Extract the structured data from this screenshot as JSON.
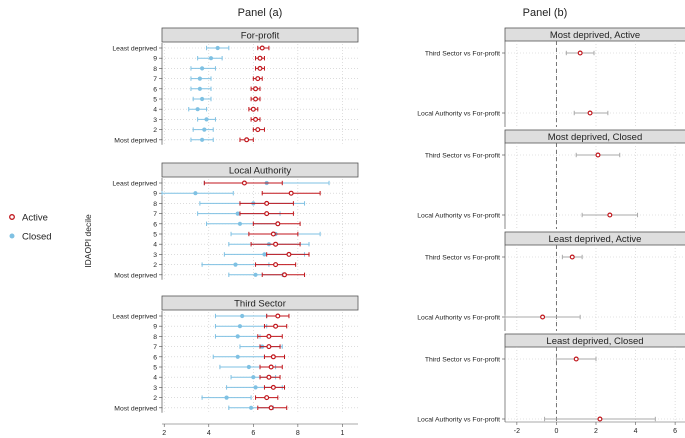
{
  "figure": {
    "ylabel": "IDAOPI decile",
    "legend": [
      {
        "name": "Active",
        "color": "#c0161c",
        "marker": "hollow-circle"
      },
      {
        "name": "Closed",
        "color": "#7fc1e3",
        "marker": "filled-circle"
      }
    ],
    "legend_position": "left"
  },
  "chart_data": [
    {
      "type": "scatter",
      "panel": "Panel (a)",
      "title": "Panel (a)",
      "xticks": [
        2,
        4,
        6,
        8,
        1
      ],
      "xlim": [
        1.9,
        10.7
      ],
      "categories": [
        "Least deprived",
        "9",
        "8",
        "7",
        "6",
        "5",
        "4",
        "3",
        "2",
        "Most deprived"
      ],
      "facets": [
        {
          "title": "For-profit",
          "series": [
            {
              "name": "Active",
              "values": [
                6.4,
                6.3,
                6.3,
                6.2,
                6.1,
                6.1,
                6.0,
                6.1,
                6.2,
                5.7
              ],
              "lower": [
                6.2,
                6.1,
                6.1,
                6.0,
                5.9,
                5.9,
                5.8,
                5.9,
                6.0,
                5.4
              ],
              "upper": [
                6.7,
                6.5,
                6.5,
                6.4,
                6.3,
                6.3,
                6.2,
                6.3,
                6.5,
                6.0
              ]
            },
            {
              "name": "Closed",
              "values": [
                4.4,
                4.1,
                3.7,
                3.6,
                3.6,
                3.7,
                3.5,
                3.9,
                3.8,
                3.7
              ],
              "lower": [
                3.9,
                3.5,
                3.2,
                3.2,
                3.2,
                3.3,
                3.1,
                3.5,
                3.3,
                3.2
              ],
              "upper": [
                4.9,
                4.6,
                4.3,
                4.1,
                4.1,
                4.1,
                3.9,
                4.3,
                4.2,
                4.2
              ]
            }
          ]
        },
        {
          "title": "Local Authority",
          "series": [
            {
              "name": "Active",
              "values": [
                5.6,
                7.7,
                6.6,
                6.6,
                7.1,
                6.9,
                7.0,
                7.6,
                7.0,
                7.4
              ],
              "lower": [
                3.8,
                6.4,
                5.4,
                5.4,
                6.0,
                5.8,
                5.9,
                6.6,
                6.1,
                6.4
              ],
              "upper": [
                7.3,
                9.0,
                7.8,
                7.8,
                8.1,
                8.0,
                8.1,
                8.5,
                7.9,
                8.3
              ]
            },
            {
              "name": "Closed",
              "values": [
                6.6,
                3.4,
                6.0,
                5.3,
                5.4,
                7.0,
                6.7,
                6.5,
                5.2,
                6.1
              ],
              "lower": [
                3.8,
                1.9,
                3.6,
                3.5,
                3.9,
                5.0,
                4.9,
                4.7,
                3.7,
                4.9
              ],
              "upper": [
                9.4,
                5.1,
                8.3,
                7.2,
                7.1,
                9.0,
                8.5,
                8.3,
                6.7,
                7.3
              ]
            }
          ]
        },
        {
          "title": "Third Sector",
          "series": [
            {
              "name": "Active",
              "values": [
                7.1,
                7.0,
                6.7,
                6.7,
                6.9,
                6.8,
                6.7,
                6.9,
                6.6,
                6.8
              ],
              "lower": [
                6.6,
                6.5,
                6.2,
                6.3,
                6.5,
                6.3,
                6.3,
                6.5,
                6.1,
                6.2
              ],
              "upper": [
                7.6,
                7.5,
                7.3,
                7.2,
                7.4,
                7.3,
                7.2,
                7.4,
                7.1,
                7.5
              ]
            },
            {
              "name": "Closed",
              "values": [
                5.5,
                5.4,
                5.3,
                6.4,
                5.3,
                5.8,
                6.0,
                6.1,
                4.8,
                5.9
              ],
              "lower": [
                4.3,
                4.3,
                4.3,
                5.4,
                4.2,
                4.5,
                5.0,
                4.8,
                3.7,
                4.9
              ],
              "upper": [
                6.6,
                6.6,
                6.3,
                7.3,
                6.5,
                7.0,
                7.0,
                7.3,
                5.9,
                6.9
              ]
            }
          ]
        }
      ]
    },
    {
      "type": "scatter",
      "panel": "Panel (b)",
      "title": "Panel (b)",
      "xticks": [
        -2,
        0,
        2,
        4,
        6
      ],
      "xlim": [
        -2.6,
        6.5
      ],
      "reference_line": 0,
      "categories": [
        "Third Sector vs For-profit",
        "Local Authority vs For-profit"
      ],
      "facets": [
        {
          "title": "Most deprived, Active",
          "estimates": [
            1.2,
            1.7
          ],
          "lower": [
            0.5,
            0.9
          ],
          "upper": [
            1.9,
            2.6
          ]
        },
        {
          "title": "Most deprived, Closed",
          "estimates": [
            2.1,
            2.7
          ],
          "lower": [
            1.0,
            1.3
          ],
          "upper": [
            3.2,
            4.1
          ]
        },
        {
          "title": "Least deprived, Active",
          "estimates": [
            0.8,
            -0.7
          ],
          "lower": [
            0.3,
            -2.6
          ],
          "upper": [
            1.3,
            1.2
          ]
        },
        {
          "title": "Least deprived, Closed",
          "estimates": [
            1.0,
            2.2
          ],
          "lower": [
            0.0,
            -0.6
          ],
          "upper": [
            2.0,
            5.0
          ]
        }
      ]
    }
  ]
}
